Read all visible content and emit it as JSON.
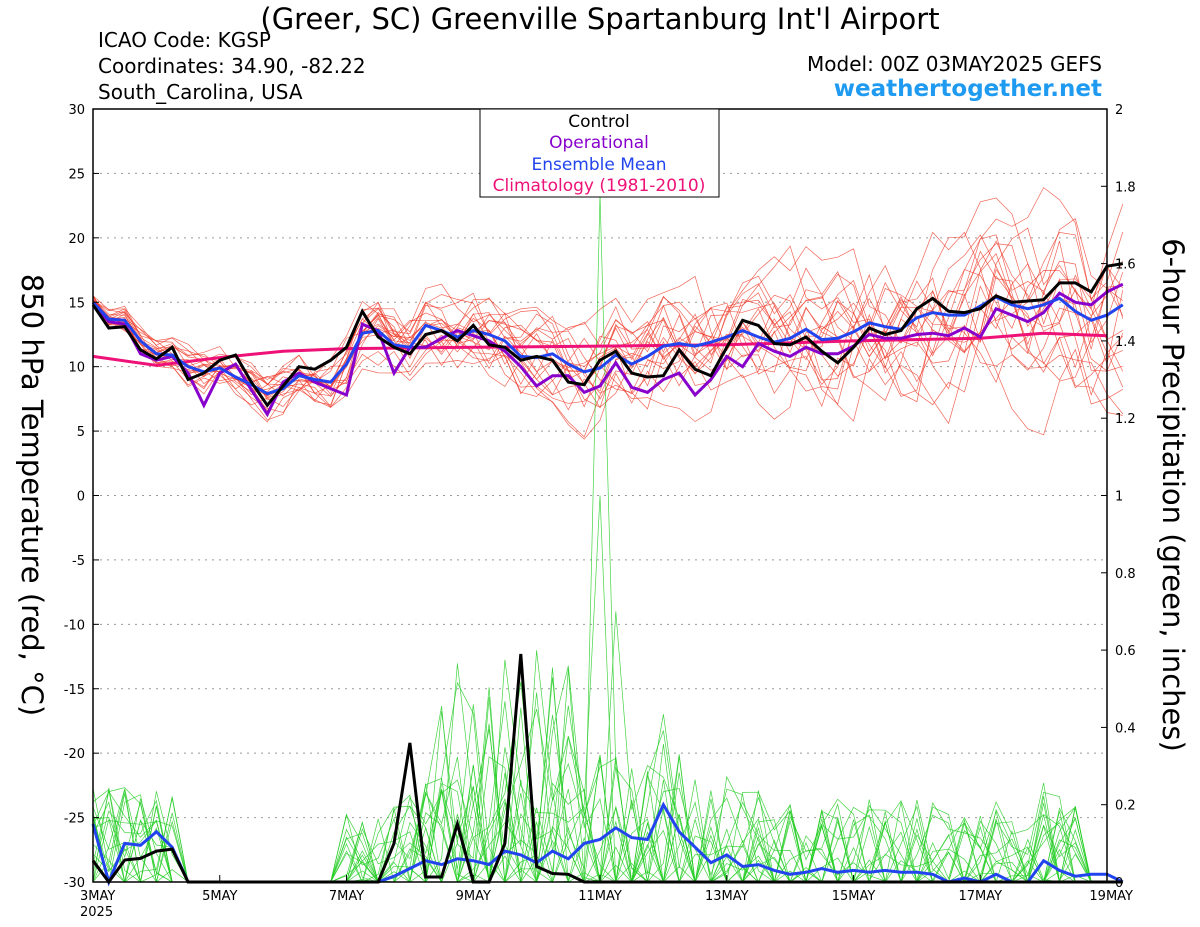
{
  "header": {
    "title": "(Greer, SC) Greenville Spartanburg Int'l Airport",
    "icao": "ICAO Code: KGSP",
    "coordinates": "Coordinates: 34.90, -82.22",
    "location": "South_Carolina, USA",
    "model": "Model: 00Z 03MAY2025 GEFS",
    "site": "weathertogether.net"
  },
  "colors": {
    "control": "#000000",
    "operational": "#8800cc",
    "ensemble_mean": "#2244ee",
    "climatology": "#ee1177",
    "temp_members": "#ee3322",
    "precip_members": "#22cc22"
  },
  "chart_data": {
    "type": "line",
    "xlabel": "",
    "ylabel_left": "850 hPa Temperature (red, °C)",
    "ylabel_right": "6-hour Precipitation (green, inches)",
    "x_ticks": [
      "3MAY\n2025",
      "5MAY",
      "7MAY",
      "9MAY",
      "11MAY",
      "13MAY",
      "15MAY",
      "17MAY",
      "19MAY"
    ],
    "x_tick_days": [
      0,
      2,
      4,
      6,
      8,
      10,
      12,
      14,
      16
    ],
    "xlim": [
      0,
      16
    ],
    "ylim_left": [
      -30,
      30
    ],
    "yticks_left": [
      30,
      25,
      20,
      15,
      10,
      5,
      0,
      -5,
      -10,
      -15,
      -20,
      -25,
      -30
    ],
    "ylim_right": [
      0,
      2
    ],
    "yticks_right": [
      "2",
      "1.8",
      "1.6",
      "1.4",
      "1.2",
      "1",
      "0.8",
      "0.6",
      "0.4",
      "0.2",
      "0"
    ],
    "grid": "dotted horizontal",
    "legend": {
      "placement": "top-center",
      "entries": [
        {
          "label": "Control",
          "color": "#000000"
        },
        {
          "label": "Operational",
          "color": "#8800cc"
        },
        {
          "label": "Ensemble Mean",
          "color": "#2244ee"
        },
        {
          "label": "Climatology (1981-2010)",
          "color": "#ee1177"
        }
      ]
    },
    "temperature": {
      "step_days": 0.25,
      "control": [
        14.8,
        13.0,
        13.1,
        11.3,
        10.6,
        11.5,
        9.0,
        9.5,
        10.5,
        10.9,
        8.8,
        7.0,
        8.5,
        10.0,
        9.8,
        10.5,
        11.5,
        14.3,
        12.3,
        11.5,
        11.0,
        12.5,
        12.8,
        12.0,
        13.2,
        11.7,
        11.5,
        10.5,
        10.8,
        10.5,
        8.8,
        8.6,
        10.5,
        11.2,
        9.5,
        9.2,
        9.3,
        11.3,
        9.8,
        9.3,
        11.5,
        13.6,
        13.2,
        11.8,
        11.7,
        12.3,
        11.2,
        10.3,
        11.5,
        13.0,
        12.5,
        12.8,
        14.5,
        15.3,
        14.3,
        14.2,
        14.5,
        15.5,
        15.0,
        15.1,
        15.2,
        16.5,
        16.5,
        15.8,
        17.8,
        18.0
      ],
      "operational": [
        15.0,
        13.5,
        13.3,
        11.0,
        10.5,
        10.8,
        9.5,
        7.0,
        9.5,
        10.2,
        8.2,
        6.3,
        8.8,
        9.5,
        8.8,
        8.3,
        7.8,
        13.3,
        12.8,
        9.5,
        11.5,
        11.5,
        12.2,
        12.8,
        12.4,
        12.0,
        11.2,
        10.0,
        8.5,
        9.3,
        9.3,
        8.0,
        8.5,
        10.3,
        8.4,
        8.0,
        9.0,
        9.5,
        7.8,
        9.0,
        10.8,
        10.0,
        11.8,
        11.2,
        10.8,
        11.5,
        11.0,
        11.0,
        11.6,
        12.5,
        12.2,
        12.2,
        12.5,
        12.6,
        12.4,
        13.0,
        12.3,
        14.5,
        14.0,
        13.5,
        14.2,
        15.7,
        15.0,
        14.8,
        15.8,
        16.4
      ],
      "ensemble_mean": [
        15.0,
        13.7,
        13.6,
        12.0,
        11.0,
        10.9,
        10.0,
        9.6,
        9.9,
        9.2,
        8.6,
        7.9,
        8.3,
        9.3,
        9.0,
        8.8,
        10.2,
        12.6,
        12.8,
        11.7,
        11.5,
        13.2,
        12.8,
        12.3,
        12.8,
        12.5,
        12.0,
        10.8,
        10.7,
        11.0,
        10.2,
        9.6,
        9.9,
        10.9,
        10.2,
        10.8,
        11.6,
        11.8,
        11.6,
        11.9,
        12.3,
        12.8,
        12.3,
        11.9,
        12.2,
        12.9,
        12.1,
        12.2,
        12.7,
        13.4,
        13.1,
        12.9,
        13.8,
        14.2,
        14.0,
        14.0,
        14.7,
        15.4,
        14.8,
        14.5,
        14.8,
        15.3,
        14.3,
        13.6,
        14.0,
        14.8
      ],
      "climatology_points": [
        [
          0,
          10.8
        ],
        [
          1,
          10.1
        ],
        [
          2,
          10.7
        ],
        [
          3,
          11.2
        ],
        [
          4,
          11.4
        ],
        [
          6,
          11.5
        ],
        [
          8,
          11.6
        ],
        [
          10,
          11.7
        ],
        [
          12,
          12.0
        ],
        [
          14,
          12.2
        ],
        [
          15,
          12.6
        ],
        [
          16,
          12.4
        ]
      ]
    },
    "precipitation": {
      "step_days": 0.25,
      "control": [
        0.055,
        0.0,
        0.057,
        0.061,
        0.08,
        0.085,
        0.0,
        0.0,
        0.0,
        0.0,
        0.0,
        0.0,
        0.0,
        0.0,
        0.0,
        0.0,
        0.0,
        0.0,
        0.0,
        0.1,
        0.36,
        0.013,
        0.013,
        0.15,
        0.0,
        0.0,
        0.1,
        0.59,
        0.04,
        0.022,
        0.02,
        0.0,
        0.0,
        0.0,
        0.0,
        0.0,
        0.0,
        0.0,
        0.0,
        0.0,
        0.0,
        0.0,
        0.0,
        0.0,
        0.0,
        0.0,
        0.0,
        0.0,
        0.0,
        0.0,
        0.0,
        0.0,
        0.0,
        0.0,
        0.0,
        0.0,
        0.0,
        0.0,
        0.0,
        0.0,
        0.0,
        0.0,
        0.0,
        0.0,
        0.0,
        0.0
      ],
      "ensemble_mean": [
        0.15,
        0.0,
        0.1,
        0.095,
        0.13,
        0.09,
        0.0,
        0.0,
        0.0,
        0.0,
        0.0,
        0.0,
        0.0,
        0.0,
        0.0,
        0.0,
        0.0,
        0.0,
        0.0,
        0.015,
        0.035,
        0.055,
        0.045,
        0.06,
        0.055,
        0.045,
        0.08,
        0.07,
        0.05,
        0.08,
        0.06,
        0.1,
        0.11,
        0.14,
        0.115,
        0.11,
        0.2,
        0.13,
        0.09,
        0.05,
        0.07,
        0.04,
        0.045,
        0.03,
        0.02,
        0.025,
        0.035,
        0.025,
        0.03,
        0.025,
        0.03,
        0.025,
        0.025,
        0.02,
        0.0,
        0.01,
        0.0,
        0.02,
        0.0,
        0.0,
        0.055,
        0.03,
        0.015,
        0.02,
        0.02,
        0.0
      ]
    }
  }
}
